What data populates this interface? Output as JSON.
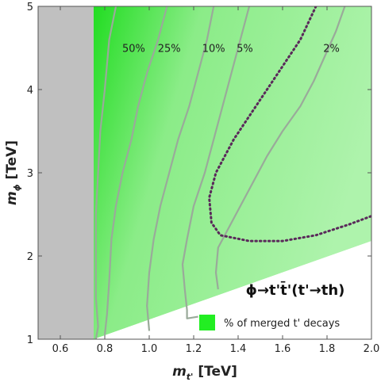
{
  "chart_data": {
    "type": "area",
    "title": "",
    "xlim": [
      0.5,
      2.0
    ],
    "ylim": [
      1,
      5
    ],
    "x_ticks": [
      "0.6",
      "0.8",
      "1.0",
      "1.2",
      "1.4",
      "1.6",
      "1.8",
      "2.0"
    ],
    "y_ticks": [
      "1",
      "2",
      "3",
      "4",
      "5"
    ],
    "xlabel": {
      "main": "m",
      "sub": "t'",
      "unit": " [TeV]"
    },
    "ylabel": {
      "main": "m",
      "sub": "ϕ",
      "unit": " [TeV]"
    },
    "process_label": "ϕ→t't̄'(t'→th)",
    "legend": {
      "label": "% of merged t' decays",
      "color": "#22ee22",
      "placement": "bottom-right"
    },
    "excluded_region": {
      "x_max": 0.75,
      "color": "#c0c0c0"
    },
    "kinematic_boundary": {
      "from": [
        0.75,
        1.0
      ],
      "to": [
        2.0,
        2.18
      ]
    },
    "colors": {
      "strong": "#22dd22",
      "light": "#aef3ac",
      "contour": "#9aaa9a",
      "dotted": "#5a2a5a"
    },
    "contours": [
      {
        "label": "50%",
        "label_at": [
          0.93,
          4.5
        ],
        "points": [
          [
            0.85,
            5.0
          ],
          [
            0.82,
            4.6
          ],
          [
            0.8,
            4.0
          ],
          [
            0.78,
            3.5
          ],
          [
            0.77,
            3.0
          ],
          [
            0.76,
            2.5
          ],
          [
            0.76,
            2.0
          ],
          [
            0.76,
            1.5
          ],
          [
            0.77,
            1.15
          ],
          [
            0.76,
            1.0
          ]
        ]
      },
      {
        "label": "25%",
        "label_at": [
          1.09,
          4.5
        ],
        "points": [
          [
            1.08,
            5.0
          ],
          [
            1.04,
            4.6
          ],
          [
            0.99,
            4.2
          ],
          [
            0.95,
            3.8
          ],
          [
            0.92,
            3.4
          ],
          [
            0.88,
            3.0
          ],
          [
            0.85,
            2.6
          ],
          [
            0.83,
            2.2
          ],
          [
            0.82,
            1.7
          ],
          [
            0.81,
            1.3
          ],
          [
            0.8,
            1.05
          ]
        ]
      },
      {
        "label": "10%",
        "label_at": [
          1.29,
          4.5
        ],
        "points": [
          [
            1.29,
            5.0
          ],
          [
            1.26,
            4.6
          ],
          [
            1.22,
            4.2
          ],
          [
            1.18,
            3.8
          ],
          [
            1.13,
            3.4
          ],
          [
            1.09,
            3.0
          ],
          [
            1.05,
            2.6
          ],
          [
            1.02,
            2.2
          ],
          [
            1.0,
            1.8
          ],
          [
            0.99,
            1.4
          ],
          [
            1.0,
            1.1
          ]
        ]
      },
      {
        "label": "5%",
        "label_at": [
          1.43,
          4.5
        ],
        "points": [
          [
            1.45,
            5.0
          ],
          [
            1.41,
            4.6
          ],
          [
            1.37,
            4.2
          ],
          [
            1.33,
            3.8
          ],
          [
            1.29,
            3.4
          ],
          [
            1.25,
            3.0
          ],
          [
            1.2,
            2.6
          ],
          [
            1.17,
            2.2
          ],
          [
            1.15,
            1.9
          ],
          [
            1.16,
            1.6
          ],
          [
            1.17,
            1.35
          ],
          [
            1.17,
            1.25
          ],
          [
            1.22,
            1.27
          ]
        ]
      },
      {
        "label": "2%",
        "label_at": [
          1.82,
          4.5
        ],
        "points": [
          [
            1.88,
            5.0
          ],
          [
            1.84,
            4.7
          ],
          [
            1.79,
            4.4
          ],
          [
            1.74,
            4.1
          ],
          [
            1.68,
            3.8
          ],
          [
            1.6,
            3.5
          ],
          [
            1.53,
            3.2
          ],
          [
            1.47,
            2.9
          ],
          [
            1.41,
            2.6
          ],
          [
            1.35,
            2.3
          ],
          [
            1.31,
            2.1
          ],
          [
            1.3,
            1.8
          ],
          [
            1.31,
            1.6
          ]
        ]
      }
    ],
    "dotted_boundary": [
      [
        1.75,
        5.0
      ],
      [
        1.68,
        4.6
      ],
      [
        1.58,
        4.2
      ],
      [
        1.48,
        3.8
      ],
      [
        1.38,
        3.4
      ],
      [
        1.3,
        3.0
      ],
      [
        1.27,
        2.7
      ],
      [
        1.28,
        2.4
      ],
      [
        1.32,
        2.25
      ],
      [
        1.45,
        2.18
      ],
      [
        1.6,
        2.18
      ],
      [
        1.75,
        2.25
      ],
      [
        1.9,
        2.38
      ],
      [
        2.0,
        2.48
      ]
    ]
  }
}
